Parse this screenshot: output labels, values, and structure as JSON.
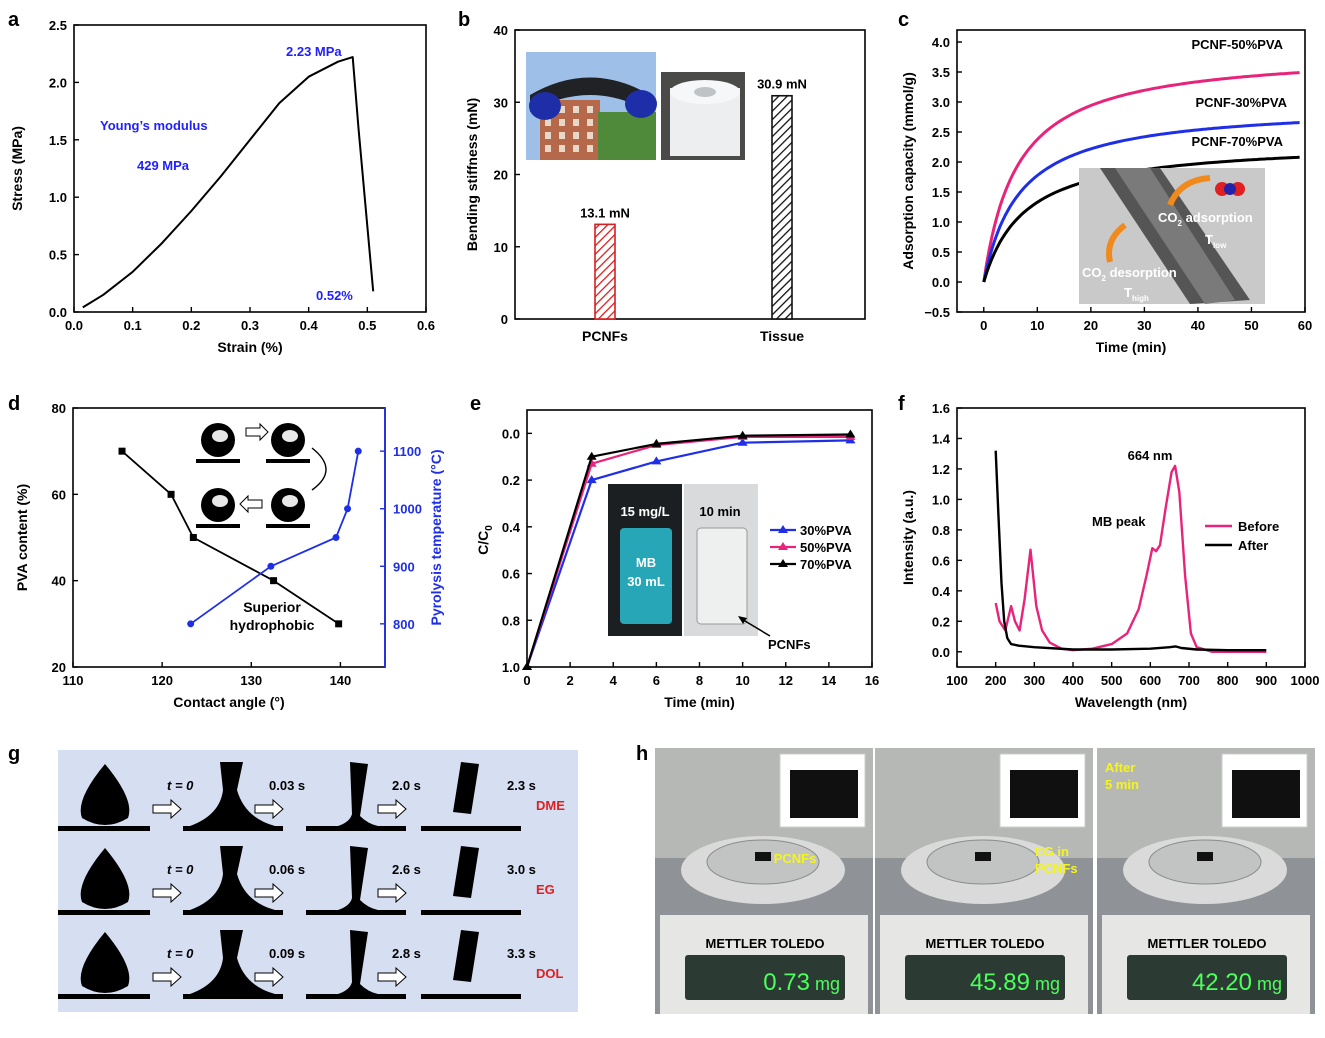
{
  "panels": {
    "a": "a",
    "b": "b",
    "c": "c",
    "d": "d",
    "e": "e",
    "f": "f",
    "g": "g",
    "h": "h"
  },
  "chart_data": [
    {
      "id": "a",
      "type": "line",
      "xlabel": "Strain (%)",
      "ylabel": "Stress (MPa)",
      "xlim": [
        0.0,
        0.6
      ],
      "ylim": [
        0.0,
        2.5
      ],
      "xticks": [
        "0.0",
        "0.1",
        "0.2",
        "0.3",
        "0.4",
        "0.5",
        "0.6"
      ],
      "yticks": [
        "0.0",
        "0.5",
        "1.0",
        "1.5",
        "2.0",
        "2.5"
      ],
      "series": [
        {
          "color": "#000000",
          "x": [
            0.015,
            0.05,
            0.1,
            0.15,
            0.2,
            0.25,
            0.3,
            0.35,
            0.4,
            0.45,
            0.475,
            0.485,
            0.5,
            0.51
          ],
          "y": [
            0.04,
            0.15,
            0.35,
            0.6,
            0.88,
            1.18,
            1.5,
            1.82,
            2.05,
            2.18,
            2.22,
            1.6,
            0.75,
            0.18
          ]
        }
      ],
      "annotations": [
        {
          "text": "2.23 MPa",
          "x": 0.475,
          "y": 2.23,
          "color": "#1f1fff"
        },
        {
          "text": "Young’s modulus",
          "color": "#1f1fff"
        },
        {
          "text": "429 MPa",
          "color": "#1f1fff"
        },
        {
          "text": "0.52%",
          "color": "#1f1fff"
        }
      ]
    },
    {
      "id": "b",
      "type": "bar",
      "ylabel": "Bending stiffness (mN)",
      "ylim": [
        0,
        40
      ],
      "yticks": [
        "0",
        "10",
        "20",
        "30",
        "40"
      ],
      "categories": [
        "PCNFs",
        "Tissue"
      ],
      "values": [
        13.1,
        30.9
      ],
      "value_labels": [
        "13.1 mN",
        "30.9 mN"
      ],
      "bar_colors": [
        "#d61f1f",
        "#111111"
      ]
    },
    {
      "id": "c",
      "type": "line",
      "xlabel": "Time (min)",
      "ylabel": "Adsorption capacity (mmol/g)",
      "xlim": [
        -5,
        60
      ],
      "ylim": [
        -0.5,
        4.2
      ],
      "xticks": [
        "0",
        "10",
        "20",
        "30",
        "40",
        "50",
        "60"
      ],
      "yticks": [
        "−0.5",
        "0.0",
        "0.5",
        "1.0",
        "1.5",
        "2.0",
        "2.5",
        "3.0",
        "3.5",
        "4.0"
      ],
      "series": [
        {
          "name": "PCNF-50%PVA",
          "color": "#e8247a",
          "qmax": 3.86,
          "k": 0.16
        },
        {
          "name": "PCNF-30%PVA",
          "color": "#1f2fe8",
          "qmax": 2.9,
          "k": 0.15
        },
        {
          "name": "PCNF-70%PVA",
          "color": "#000000",
          "qmax": 2.26,
          "k": 0.13
        }
      ],
      "inset_text": [
        "CO",
        "2",
        " adsorption",
        "T",
        "low",
        "CO",
        "2",
        " desorption",
        "T",
        "high"
      ]
    },
    {
      "id": "d",
      "type": "line",
      "xlabel": "Contact angle (°)",
      "ylabel": "PVA content (%)",
      "ylabel_right": "Pyrolysis temperature (°C)",
      "xlim": [
        110,
        145
      ],
      "ylim": [
        20,
        80
      ],
      "ylim_right": [
        725,
        1175
      ],
      "xticks": [
        "110",
        "120",
        "130",
        "140"
      ],
      "yticks": [
        "20",
        "40",
        "60",
        "80"
      ],
      "yticks_right": [
        "800",
        "900",
        "1000",
        "1100"
      ],
      "series": [
        {
          "color": "#000000",
          "axis": "left",
          "x": [
            115.5,
            121,
            123.5,
            132.5,
            139.8
          ],
          "y": [
            70,
            60,
            50,
            40,
            30
          ]
        },
        {
          "color": "#1f2fe8",
          "axis": "right",
          "x": [
            123.2,
            132.2,
            139.5,
            140.8,
            142
          ],
          "y": [
            800,
            900,
            950,
            1000,
            1100
          ]
        }
      ],
      "annotations": [
        {
          "text": "Superior"
        },
        {
          "text": "hydrophobic"
        }
      ]
    },
    {
      "id": "e",
      "type": "line",
      "xlabel": "Time (min)",
      "ylabel": "C/C",
      "ylabel_sub": "0",
      "xlim": [
        0,
        16
      ],
      "ylim": [
        1.0,
        -0.1
      ],
      "xticks": [
        "0",
        "2",
        "4",
        "6",
        "8",
        "10",
        "12",
        "14",
        "16"
      ],
      "yticks": [
        "1.0",
        "0.8",
        "0.6",
        "0.4",
        "0.2",
        "0.0"
      ],
      "series": [
        {
          "name": "30%PVA",
          "color": "#1f2fe8",
          "x": [
            0,
            3,
            6,
            10,
            15
          ],
          "y": [
            1.0,
            0.2,
            0.12,
            0.04,
            0.03
          ]
        },
        {
          "name": "50%PVA",
          "color": "#e8247a",
          "x": [
            0,
            3,
            6,
            10,
            15
          ],
          "y": [
            1.0,
            0.13,
            0.05,
            0.015,
            0.015
          ]
        },
        {
          "name": "70%PVA",
          "color": "#000000",
          "x": [
            0,
            3,
            6,
            10,
            15
          ],
          "y": [
            1.0,
            0.1,
            0.045,
            0.01,
            0.005
          ]
        }
      ],
      "inset_text": [
        "15 mg/L",
        "10 min",
        "MB",
        "30 mL",
        "PCNFs"
      ]
    },
    {
      "id": "f",
      "type": "line",
      "xlabel": "Wavelength (nm)",
      "ylabel": "Intensity (a.u.)",
      "xlim": [
        100,
        1000
      ],
      "ylim": [
        -0.1,
        1.6
      ],
      "xticks": [
        "100",
        "200",
        "300",
        "400",
        "500",
        "600",
        "700",
        "800",
        "900",
        "1000"
      ],
      "yticks": [
        "0.0",
        "0.2",
        "0.4",
        "0.6",
        "0.8",
        "1.0",
        "1.2",
        "1.4",
        "1.6"
      ],
      "series": [
        {
          "name": "Before",
          "color": "#e8247a",
          "x": [
            200,
            210,
            225,
            240,
            250,
            262,
            275,
            290,
            305,
            320,
            340,
            370,
            400,
            450,
            500,
            540,
            570,
            590,
            605,
            615,
            625,
            640,
            655,
            664,
            675,
            690,
            705,
            720,
            760,
            800,
            850,
            900
          ],
          "y": [
            0.32,
            0.2,
            0.14,
            0.3,
            0.2,
            0.14,
            0.35,
            0.67,
            0.3,
            0.14,
            0.06,
            0.02,
            0.01,
            0.02,
            0.05,
            0.12,
            0.28,
            0.5,
            0.68,
            0.66,
            0.7,
            0.95,
            1.18,
            1.22,
            1.05,
            0.5,
            0.12,
            0.03,
            0.0,
            0.0,
            0.0,
            0.0
          ]
        },
        {
          "name": "After",
          "color": "#000000",
          "x": [
            200,
            207,
            215,
            222,
            230,
            240,
            260,
            300,
            400,
            500,
            600,
            650,
            665,
            680,
            720,
            800,
            900
          ],
          "y": [
            1.32,
            0.9,
            0.45,
            0.2,
            0.09,
            0.05,
            0.04,
            0.03,
            0.015,
            0.015,
            0.02,
            0.03,
            0.035,
            0.025,
            0.015,
            0.01,
            0.01
          ]
        }
      ],
      "annotations": [
        {
          "text": "664 nm"
        },
        {
          "text": "MB peak"
        }
      ]
    }
  ],
  "panel_g": {
    "rows": [
      {
        "label": "DME",
        "times": [
          "t = 0",
          "0.03 s",
          "2.0 s",
          "2.3 s"
        ]
      },
      {
        "label": "EG",
        "times": [
          "t = 0",
          "0.06 s",
          "2.6 s",
          "3.0 s"
        ]
      },
      {
        "label": "DOL",
        "times": [
          "t = 0",
          "0.09 s",
          "2.8 s",
          "3.3 s"
        ]
      }
    ]
  },
  "panel_h": {
    "photos": [
      {
        "caption": "PCNFs",
        "reading": "0.73",
        "unit": "mg",
        "brand": "METTLER TOLEDO"
      },
      {
        "caption_lines": [
          "EG in",
          "PCNFs"
        ],
        "reading": "45.89",
        "unit": "mg",
        "brand": "METTLER TOLEDO"
      },
      {
        "caption_lines": [
          "After",
          "5 min"
        ],
        "reading": "42.20",
        "unit": "mg",
        "brand": "METTLER TOLEDO"
      }
    ]
  }
}
